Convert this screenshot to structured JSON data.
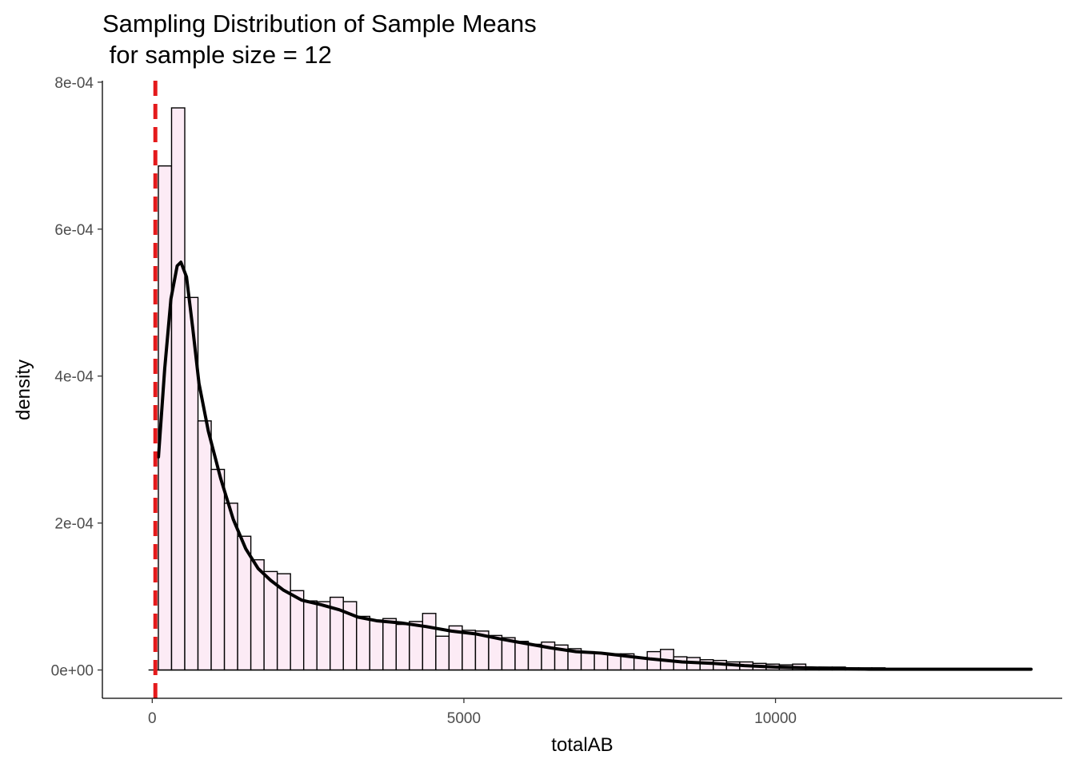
{
  "chart_data": {
    "type": "histogram",
    "title_lines": [
      "Sampling Distribution of Sample Means",
      " for sample size = 12"
    ],
    "xlabel": "totalAB",
    "ylabel": "density",
    "xlim": [
      -800,
      14600
    ],
    "ylim": [
      -3.85e-05,
      0.000802
    ],
    "x_ticks": [
      {
        "value": 0,
        "label": "0"
      },
      {
        "value": 5000,
        "label": "5000"
      },
      {
        "value": 10000,
        "label": "10000"
      }
    ],
    "y_ticks": [
      {
        "value": 0,
        "label": "0e+00"
      },
      {
        "value": 0.0002,
        "label": "2e-04"
      },
      {
        "value": 0.0004,
        "label": "4e-04"
      },
      {
        "value": 0.0006,
        "label": "6e-04"
      },
      {
        "value": 0.0008,
        "label": "8e-04"
      }
    ],
    "bin_start": 98,
    "bin_width": 212,
    "bin_values": [
      0.000686,
      0.000765,
      0.000507,
      0.000339,
      0.000273,
      0.000227,
      0.000182,
      0.00015,
      0.000134,
      0.000131,
      0.000108,
      9.4e-05,
      9.3e-05,
      9.9e-05,
      9.3e-05,
      7.3e-05,
      6.8e-05,
      7e-05,
      6.2e-05,
      6.6e-05,
      7.7e-05,
      4.6e-05,
      6e-05,
      5.4e-05,
      5.3e-05,
      4.7e-05,
      4.4e-05,
      3.9e-05,
      3.5e-05,
      3.8e-05,
      3.4e-05,
      2.9e-05,
      2.5e-05,
      2.3e-05,
      2.2e-05,
      2.2e-05,
      1.7e-05,
      2.5e-05,
      2.8e-05,
      1.8e-05,
      1.7e-05,
      1.4e-05,
      1.3e-05,
      1.1e-05,
      1.1e-05,
      9e-06,
      8e-06,
      7e-06,
      8e-06,
      3e-06,
      4e-06,
      4e-06,
      3e-06,
      3e-06,
      3e-06,
      2e-06,
      2e-06,
      2e-06,
      1e-06,
      1e-06,
      1e-06,
      1e-06,
      1e-06,
      1e-06,
      1e-06,
      1e-06
    ],
    "density_curve": {
      "x": [
        100,
        200,
        300,
        400,
        460,
        550,
        650,
        750,
        900,
        1100,
        1300,
        1500,
        1700,
        1900,
        2100,
        2400,
        2700,
        3000,
        3300,
        3600,
        4000,
        4400,
        4800,
        5200,
        5600,
        6000,
        6400,
        6800,
        7200,
        7600,
        8000,
        8500,
        9000,
        9500,
        10000,
        10500,
        11000,
        11500,
        12000,
        12500,
        13000,
        13500,
        14100
      ],
      "y": [
        0.00029,
        0.00041,
        0.000505,
        0.00055,
        0.000555,
        0.000535,
        0.000465,
        0.00039,
        0.000325,
        0.00026,
        0.000205,
        0.000165,
        0.000138,
        0.000122,
        0.000109,
        9.5e-05,
        8.9e-05,
        8.2e-05,
        7.2e-05,
        6.7e-05,
        6.4e-05,
        5.9e-05,
        5.3e-05,
        4.9e-05,
        4.2e-05,
        3.6e-05,
        3e-05,
        2.5e-05,
        2.3e-05,
        1.9e-05,
        1.5e-05,
        1.1e-05,
        9e-06,
        6e-06,
        4e-06,
        3e-06,
        2e-06,
        1e-06,
        1e-06,
        1e-06,
        1e-06,
        1e-06,
        1e-06
      ]
    },
    "vline": {
      "x": 50,
      "color": "#e41a1c",
      "style": "dashed"
    },
    "bar_fill": "#fcebf5",
    "bar_stroke": "#000000",
    "curve_color": "#000000",
    "grid": false
  }
}
